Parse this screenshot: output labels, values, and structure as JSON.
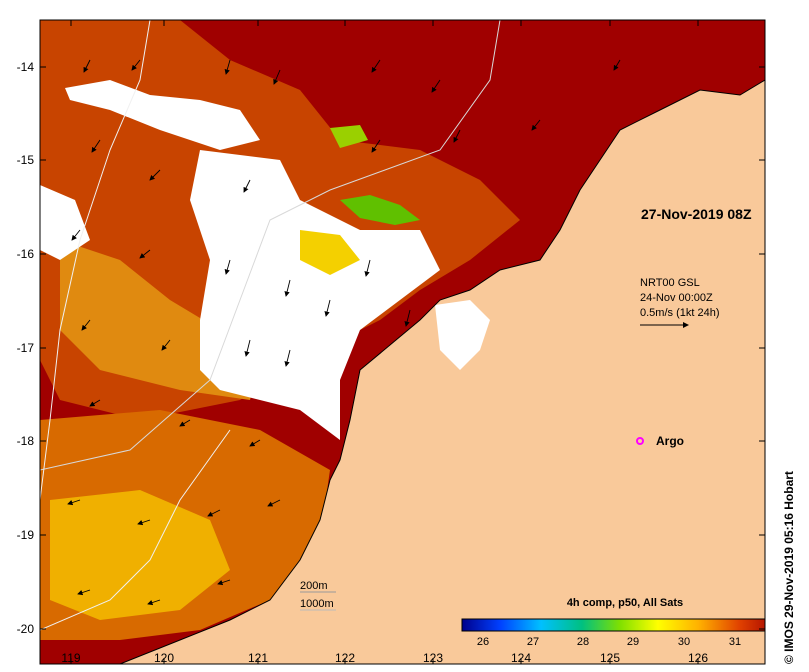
{
  "map": {
    "time_label": "27-Nov-2019 08Z",
    "current_legend": {
      "line1": "NRT00 GSL",
      "line2": "24-Nov 00:00Z",
      "line3": "0.5m/s (1kt 24h)"
    },
    "argo_label": "Argo",
    "credit": "© IMOS 29-Nov-2019 05:16 Hobart",
    "colorbar": {
      "title": "4h comp, p50, All Sats",
      "ticks": [
        "26",
        "27",
        "28",
        "29",
        "30",
        "31"
      ]
    },
    "depth_contours": {
      "shallow": "200m",
      "deep": "1000m"
    },
    "lat_ticks": [
      "-14",
      "-15",
      "-16",
      "-17",
      "-18",
      "-19",
      "-20"
    ],
    "lon_ticks": [
      "119",
      "120",
      "121",
      "122",
      "123",
      "124",
      "125",
      "126"
    ],
    "colors": {
      "land": "#f9c99a",
      "cloud": "#ffffff",
      "sst_hot": "#a00000",
      "sst_warm": "#c84400",
      "sst_mid": "#e89000",
      "sst_cool": "#f4c000",
      "argo": "#ff00ff"
    }
  }
}
